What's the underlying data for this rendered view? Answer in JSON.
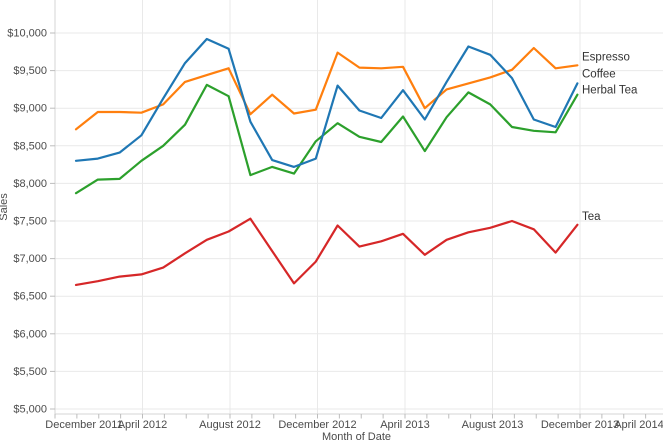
{
  "chart_data": {
    "type": "line",
    "title": "",
    "xlabel": "Month of Date",
    "ylabel": "Sales",
    "ylim": [
      5000,
      10500
    ],
    "y_tick_step": 500,
    "y_tick_labels_top_to_bottom": [
      "$10,000",
      "$9,500",
      "$9,000",
      "$8,500",
      "$8,000",
      "$7,500",
      "$7,000",
      "$6,500",
      "$6,000",
      "$5,500",
      "$5,000"
    ],
    "x_tick_labels": [
      "December 2011",
      "April 2012",
      "August 2012",
      "December 2012",
      "April 2013",
      "August 2013",
      "December 2013",
      "April 2014"
    ],
    "grid": true,
    "legend_position": "line-end-labels-right",
    "x": [
      "2012-01",
      "2012-02",
      "2012-03",
      "2012-04",
      "2012-05",
      "2012-06",
      "2012-07",
      "2012-08",
      "2012-09",
      "2012-10",
      "2012-11",
      "2012-12",
      "2013-01",
      "2013-02",
      "2013-03",
      "2013-04",
      "2013-05",
      "2013-06",
      "2013-07",
      "2013-08",
      "2013-09",
      "2013-10",
      "2013-11",
      "2013-12"
    ],
    "series": [
      {
        "name": "Espresso",
        "color": "#ff7f0e",
        "values": [
          8720,
          8950,
          8950,
          8940,
          9050,
          9350,
          9440,
          9530,
          8920,
          9180,
          8930,
          8980,
          9740,
          9540,
          9530,
          9550,
          9000,
          9250,
          9330,
          9410,
          9510,
          9800,
          9530,
          9570
        ]
      },
      {
        "name": "Coffee",
        "color": "#1f77b4",
        "values": [
          8300,
          8330,
          8410,
          8640,
          9130,
          9600,
          9920,
          9790,
          8820,
          8310,
          8220,
          8330,
          9300,
          8970,
          8870,
          9240,
          8850,
          9350,
          9820,
          9710,
          9400,
          8850,
          8750,
          9330
        ]
      },
      {
        "name": "Herbal Tea",
        "color": "#2ca02c",
        "values": [
          7870,
          8050,
          8060,
          8300,
          8500,
          8780,
          9310,
          9160,
          8110,
          8220,
          8130,
          8560,
          8800,
          8620,
          8550,
          8890,
          8430,
          8880,
          9210,
          9050,
          8750,
          8700,
          8680,
          9180
        ]
      },
      {
        "name": "Tea",
        "color": "#d62728",
        "values": [
          6650,
          6700,
          6760,
          6790,
          6880,
          7070,
          7250,
          7360,
          7530,
          7100,
          6670,
          6960,
          7440,
          7160,
          7230,
          7330,
          7050,
          7250,
          7350,
          7410,
          7500,
          7390,
          7080,
          7450
        ]
      }
    ],
    "style": {
      "grid_color": "#e9e9e9",
      "axis_rule_color": "#d4d4d4",
      "tick_color": "#bdbdbd",
      "axis_text_color": "#4b4b4b",
      "series_label_color": "#333333"
    }
  }
}
